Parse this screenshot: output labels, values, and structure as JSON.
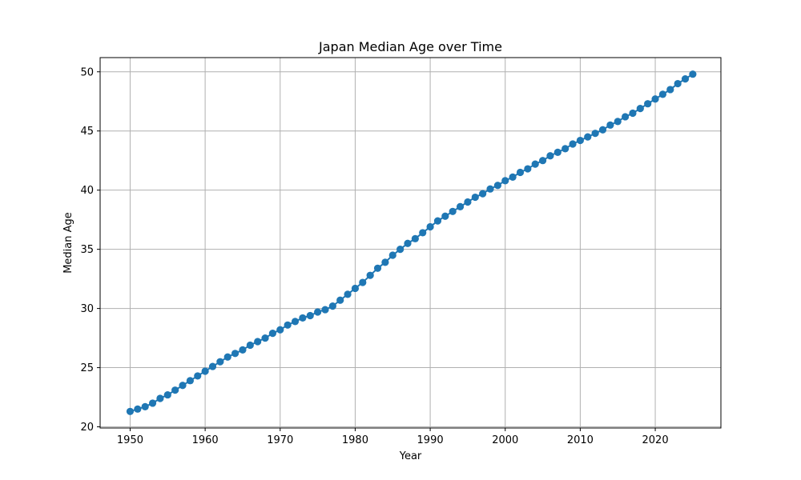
{
  "chart_data": {
    "type": "line",
    "title": "Japan Median Age over Time",
    "xlabel": "Year",
    "ylabel": "Median Age",
    "xlim": [
      1946,
      2028.75
    ],
    "ylim": [
      19.9,
      51.2
    ],
    "xticks": [
      1950,
      1960,
      1970,
      1980,
      1990,
      2000,
      2010,
      2020
    ],
    "yticks": [
      20,
      25,
      30,
      35,
      40,
      45,
      50
    ],
    "grid": true,
    "markers": true,
    "color": "#1f77b4",
    "x": [
      1950,
      1951,
      1952,
      1953,
      1954,
      1955,
      1956,
      1957,
      1958,
      1959,
      1960,
      1961,
      1962,
      1963,
      1964,
      1965,
      1966,
      1967,
      1968,
      1969,
      1970,
      1971,
      1972,
      1973,
      1974,
      1975,
      1976,
      1977,
      1978,
      1979,
      1980,
      1981,
      1982,
      1983,
      1984,
      1985,
      1986,
      1987,
      1988,
      1989,
      1990,
      1991,
      1992,
      1993,
      1994,
      1995,
      1996,
      1997,
      1998,
      1999,
      2000,
      2001,
      2002,
      2003,
      2004,
      2005,
      2006,
      2007,
      2008,
      2009,
      2010,
      2011,
      2012,
      2013,
      2014,
      2015,
      2016,
      2017,
      2018,
      2019,
      2020,
      2021,
      2022,
      2023,
      2024,
      2025
    ],
    "y": [
      21.3,
      21.5,
      21.7,
      22.0,
      22.4,
      22.7,
      23.1,
      23.5,
      23.9,
      24.3,
      24.7,
      25.1,
      25.5,
      25.9,
      26.2,
      26.5,
      26.9,
      27.2,
      27.5,
      27.9,
      28.2,
      28.6,
      28.9,
      29.2,
      29.4,
      29.7,
      29.9,
      30.2,
      30.7,
      31.2,
      31.7,
      32.2,
      32.8,
      33.4,
      33.9,
      34.5,
      35.0,
      35.5,
      35.9,
      36.4,
      36.9,
      37.4,
      37.8,
      38.2,
      38.6,
      39.0,
      39.4,
      39.7,
      40.1,
      40.4,
      40.8,
      41.1,
      41.5,
      41.8,
      42.2,
      42.5,
      42.9,
      43.2,
      43.5,
      43.9,
      44.2,
      44.5,
      44.8,
      45.1,
      45.5,
      45.8,
      46.2,
      46.5,
      46.9,
      47.3,
      47.7,
      48.1,
      48.5,
      49.0,
      49.4,
      49.8
    ]
  }
}
